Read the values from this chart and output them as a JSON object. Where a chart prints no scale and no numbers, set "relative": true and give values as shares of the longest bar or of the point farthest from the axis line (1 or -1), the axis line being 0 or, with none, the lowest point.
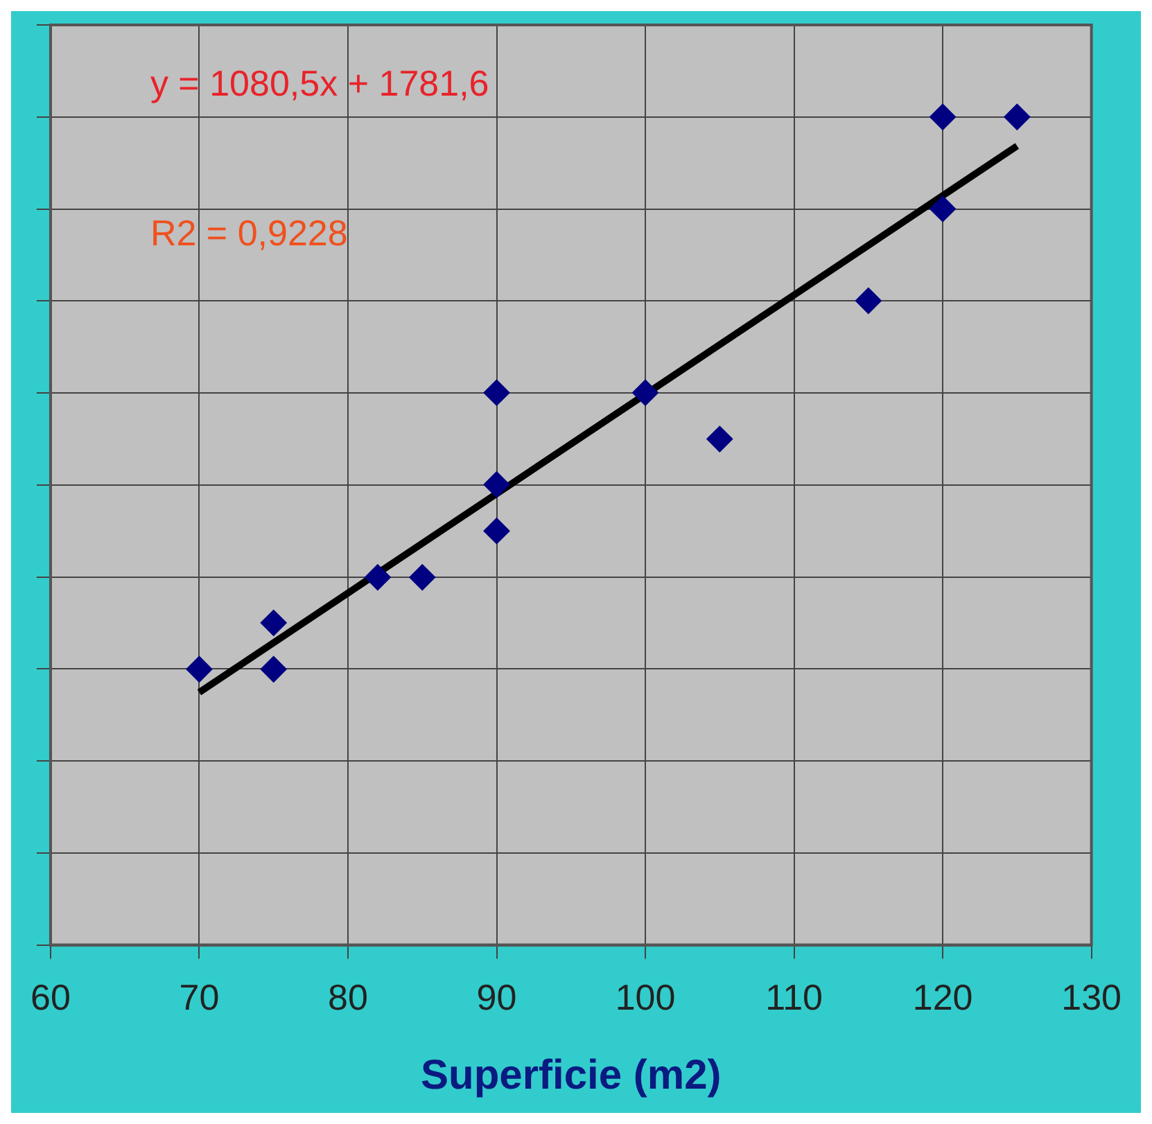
{
  "chart_data": {
    "type": "scatter",
    "xlabel": "Superficie (m2)",
    "xlim": [
      60,
      130
    ],
    "xticks": [
      60,
      70,
      80,
      90,
      100,
      110,
      120,
      130
    ],
    "relative": true,
    "grid": true,
    "legend": false,
    "marker": "diamond",
    "annotations": [
      "y = 1080,5x + 1781,6",
      "R2 = 0,9228"
    ],
    "series": [
      {
        "type": "scatter",
        "color": "#000080",
        "x": [
          70,
          75,
          75,
          82,
          85,
          90,
          90,
          90,
          100,
          105,
          115,
          120,
          120,
          125
        ],
        "values": [
          0.333,
          0.389,
          0.333,
          0.444,
          0.444,
          0.667,
          0.556,
          0.5,
          0.667,
          0.611,
          0.778,
          1,
          0.889,
          1
        ]
      },
      {
        "type": "line",
        "color": "#000000",
        "marker": "none",
        "line_style": "solid",
        "x": [
          70,
          125
        ],
        "values": [
          0.305,
          0.965
        ]
      }
    ]
  }
}
